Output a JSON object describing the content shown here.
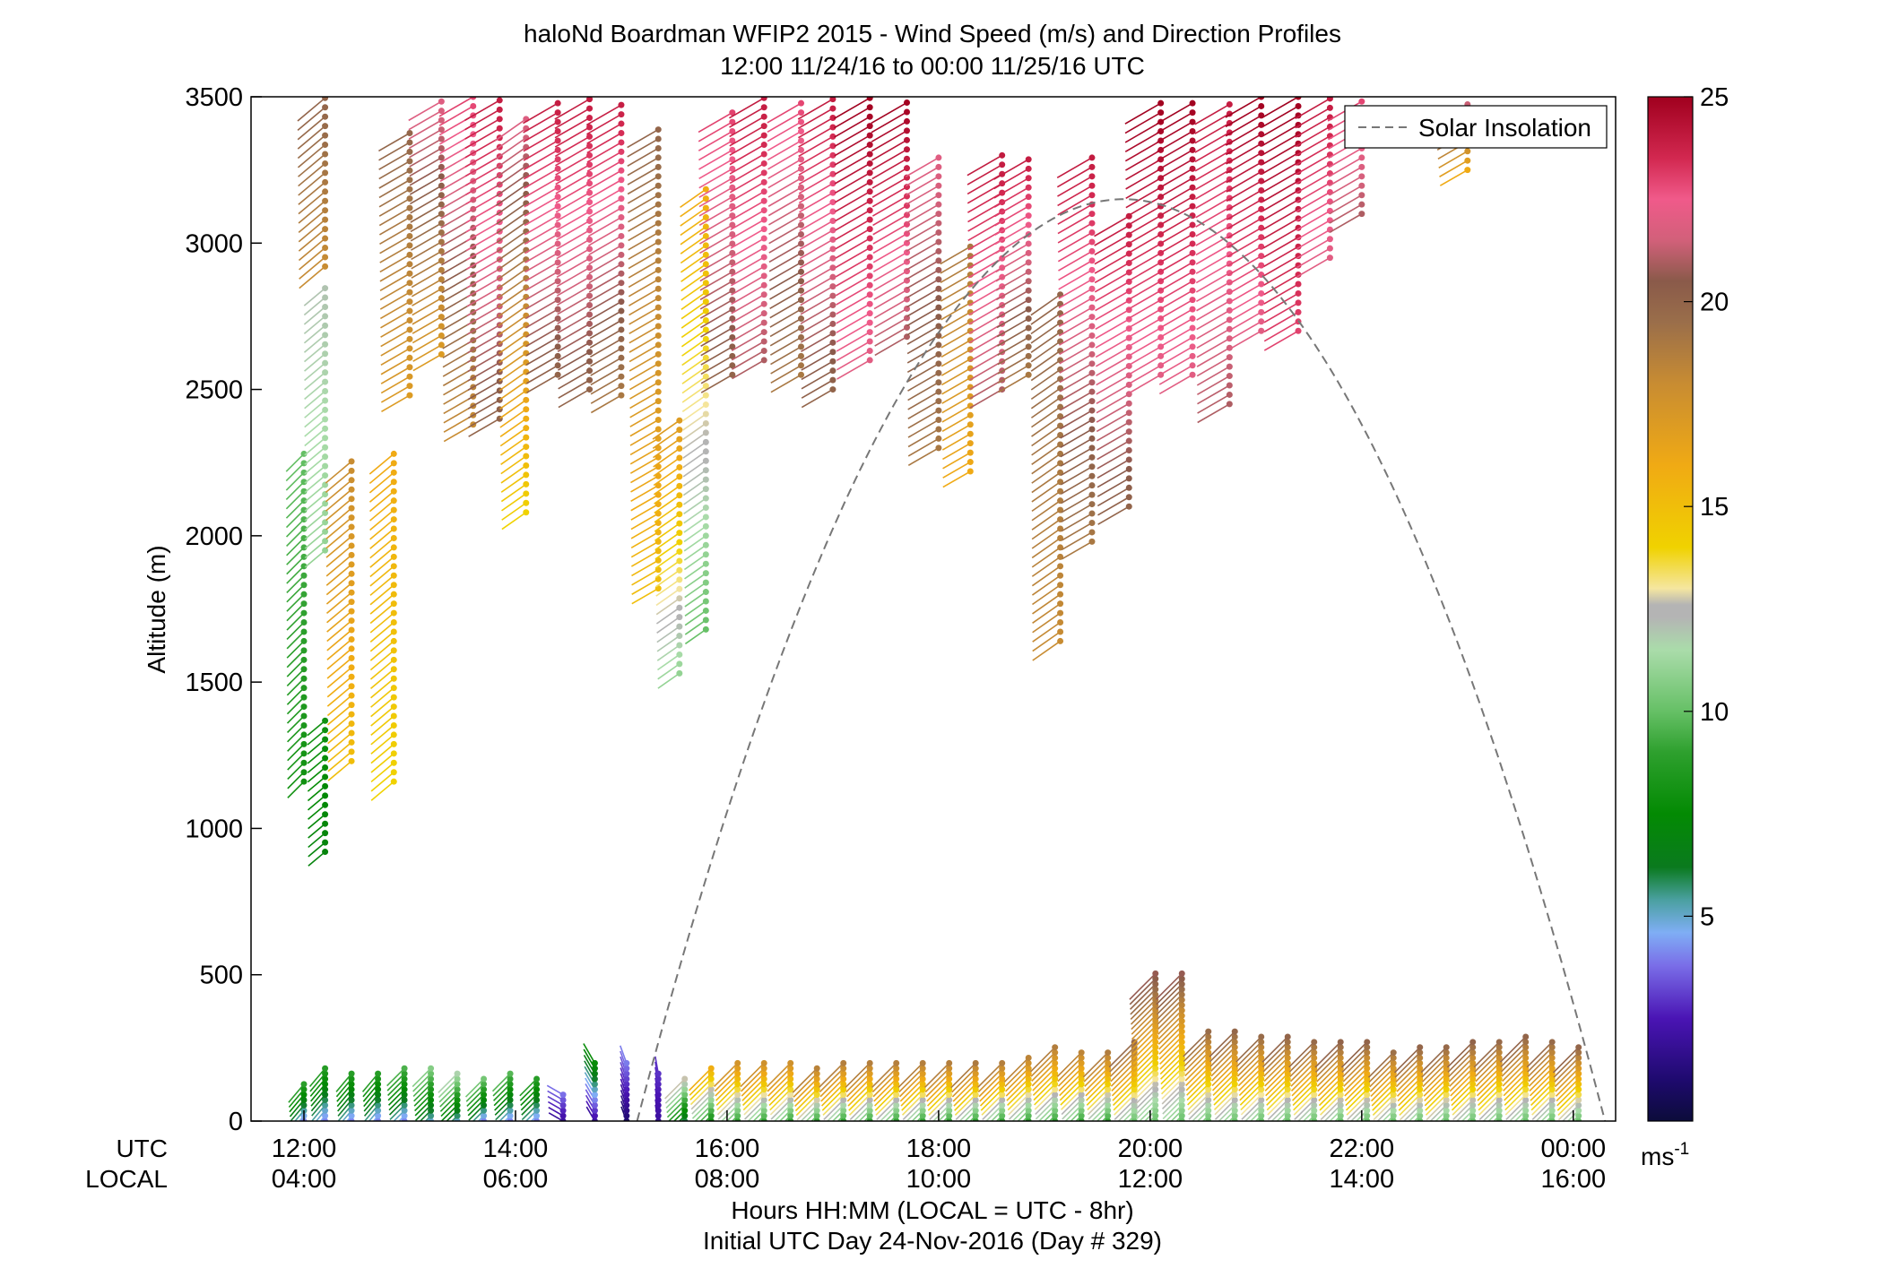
{
  "chart_data": {
    "type": "wind-barb-profile",
    "title": "haloNd Boardman WFIP2 2015 - Wind Speed (m/s) and Direction Profiles",
    "subtitle": "12:00 11/24/16 to 00:00 11/25/16  UTC",
    "ylabel": "Altitude (m)",
    "ylim": [
      0,
      3500
    ],
    "y_ticks": [
      "0",
      "500",
      "1000",
      "1500",
      "2000",
      "2500",
      "3000",
      "3500"
    ],
    "y_tick_values": [
      0,
      500,
      1000,
      1500,
      2000,
      2500,
      3000,
      3500
    ],
    "xlim_hours": [
      11.5,
      24.4
    ],
    "x_tick_hours": [
      12,
      14,
      16,
      18,
      20,
      22,
      24
    ],
    "x_ticks_utc": [
      "12:00",
      "14:00",
      "16:00",
      "18:00",
      "20:00",
      "22:00",
      "00:00"
    ],
    "x_ticks_local": [
      "04:00",
      "06:00",
      "08:00",
      "10:00",
      "12:00",
      "14:00",
      "16:00"
    ],
    "row_label_utc": "UTC",
    "row_label_local": "LOCAL",
    "xlabel": "Hours HH:MM  (LOCAL = UTC - 8hr)",
    "xlabel2": "Initial UTC Day 24-Nov-2016 (Day # 329)",
    "legend": "Solar Insolation",
    "legend_position": "top-right",
    "colorbar": {
      "range": [
        0,
        25
      ],
      "ticks": [
        "5",
        "10",
        "15",
        "20",
        "25"
      ],
      "tick_values": [
        5,
        10,
        15,
        20,
        25
      ],
      "unit": "ms",
      "unit_exp": "-1",
      "stops": [
        [
          0,
          "#0c0c3a"
        ],
        [
          1,
          "#1e0a6e"
        ],
        [
          2.5,
          "#4a14b4"
        ],
        [
          3.8,
          "#7a6ee8"
        ],
        [
          4.6,
          "#7faef5"
        ],
        [
          5.4,
          "#4aa0a0"
        ],
        [
          6.2,
          "#0a7a1e"
        ],
        [
          7.5,
          "#038a03"
        ],
        [
          9,
          "#2ea02e"
        ],
        [
          10,
          "#66c066"
        ],
        [
          11.5,
          "#aadcaa"
        ],
        [
          12.3,
          "#b4b4b4"
        ],
        [
          12.6,
          "#b4b4b4"
        ],
        [
          13,
          "#f5e6a0"
        ],
        [
          14,
          "#f0d200"
        ],
        [
          16,
          "#f0aa14"
        ],
        [
          18,
          "#c88c32"
        ],
        [
          19.5,
          "#9a6e4a"
        ],
        [
          20.5,
          "#8a5a4a"
        ],
        [
          21.5,
          "#d2607a"
        ],
        [
          22.5,
          "#f05a8a"
        ],
        [
          23.5,
          "#d22850"
        ],
        [
          25,
          "#a0001e"
        ]
      ]
    },
    "solar_insolation": {
      "start_hour": 15.15,
      "end_hour": 24.3,
      "peak_hour": 19.75,
      "peak_altitude": 3150,
      "style": "dashed",
      "color": "#777777"
    },
    "profiles": [
      {
        "t": 12.0,
        "base": 1160,
        "top": 2290,
        "s_low": 8,
        "s_high": 10,
        "dir": 225
      },
      {
        "t": 12.2,
        "base": 920,
        "top": 1390,
        "s_low": 7,
        "s_high": 8,
        "dir": 230
      },
      {
        "t": 12.2,
        "base": 1950,
        "top": 2850,
        "s_low": 11,
        "s_high": 12,
        "dir": 230
      },
      {
        "t": 12.2,
        "base": 2920,
        "top": 3500,
        "s_low": 18,
        "s_high": 20,
        "dir": 230
      },
      {
        "t": 12.45,
        "base": 1230,
        "top": 2260,
        "s_low": 15,
        "s_high": 18,
        "dir": 230
      },
      {
        "t": 12.85,
        "base": 1160,
        "top": 2280,
        "s_low": 14,
        "s_high": 16,
        "dir": 230
      },
      {
        "t": 13.0,
        "base": 2480,
        "top": 3400,
        "s_low": 17,
        "s_high": 20,
        "dir": 240
      },
      {
        "t": 13.3,
        "base": 2620,
        "top": 3500,
        "s_low": 17,
        "s_high": 22,
        "dir": 240
      },
      {
        "t": 13.6,
        "base": 2380,
        "top": 3500,
        "s_low": 18,
        "s_high": 23,
        "dir": 240
      },
      {
        "t": 13.85,
        "base": 2400,
        "top": 3500,
        "s_low": 20,
        "s_high": 24,
        "dir": 240
      },
      {
        "t": 14.1,
        "base": 2080,
        "top": 3450,
        "s_low": 14,
        "s_high": 22,
        "dir": 235
      },
      {
        "t": 14.4,
        "base": 2550,
        "top": 3500,
        "s_low": 20,
        "s_high": 24,
        "dir": 240
      },
      {
        "t": 14.7,
        "base": 2500,
        "top": 3500,
        "s_low": 20,
        "s_high": 24,
        "dir": 240
      },
      {
        "t": 15.0,
        "base": 2480,
        "top": 3500,
        "s_low": 19,
        "s_high": 24,
        "dir": 240
      },
      {
        "t": 15.35,
        "base": 1820,
        "top": 3400,
        "s_low": 15,
        "s_high": 20,
        "dir": 240
      },
      {
        "t": 15.55,
        "base": 1530,
        "top": 2400,
        "s_low": 11,
        "s_high": 17,
        "dir": 235
      },
      {
        "t": 15.8,
        "base": 1680,
        "top": 3200,
        "s_low": 10,
        "s_high": 16,
        "dir": 235
      },
      {
        "t": 16.05,
        "base": 2550,
        "top": 3450,
        "s_low": 20,
        "s_high": 23,
        "dir": 240
      },
      {
        "t": 16.35,
        "base": 2600,
        "top": 3500,
        "s_low": 21,
        "s_high": 24,
        "dir": 240
      },
      {
        "t": 16.7,
        "base": 2550,
        "top": 3500,
        "s_low": 19,
        "s_high": 23,
        "dir": 240
      },
      {
        "t": 17.0,
        "base": 2500,
        "top": 3500,
        "s_low": 20,
        "s_high": 24,
        "dir": 240
      },
      {
        "t": 17.35,
        "base": 2600,
        "top": 3500,
        "s_low": 22,
        "s_high": 25,
        "dir": 240
      },
      {
        "t": 17.7,
        "base": 2680,
        "top": 3500,
        "s_low": 21,
        "s_high": 25,
        "dir": 240
      },
      {
        "t": 18.0,
        "base": 2300,
        "top": 3300,
        "s_low": 19,
        "s_high": 22,
        "dir": 240
      },
      {
        "t": 18.3,
        "base": 2220,
        "top": 3000,
        "s_low": 16,
        "s_high": 19,
        "dir": 240
      },
      {
        "t": 18.6,
        "base": 2500,
        "top": 3300,
        "s_low": 21,
        "s_high": 24,
        "dir": 240
      },
      {
        "t": 18.85,
        "base": 2550,
        "top": 3300,
        "s_low": 19,
        "s_high": 24,
        "dir": 240
      },
      {
        "t": 19.15,
        "base": 1640,
        "top": 2850,
        "s_low": 18,
        "s_high": 20,
        "dir": 235
      },
      {
        "t": 19.45,
        "base": 1980,
        "top": 3300,
        "s_low": 19,
        "s_high": 24,
        "dir": 240
      },
      {
        "t": 19.8,
        "base": 2100,
        "top": 3100,
        "s_low": 20,
        "s_high": 24,
        "dir": 240
      },
      {
        "t": 20.1,
        "base": 2550,
        "top": 3500,
        "s_low": 22,
        "s_high": 25,
        "dir": 240
      },
      {
        "t": 20.4,
        "base": 2550,
        "top": 3500,
        "s_low": 22,
        "s_high": 25,
        "dir": 240
      },
      {
        "t": 20.75,
        "base": 2450,
        "top": 3500,
        "s_low": 21,
        "s_high": 24,
        "dir": 240
      },
      {
        "t": 21.05,
        "base": 2700,
        "top": 3500,
        "s_low": 22,
        "s_high": 25,
        "dir": 240
      },
      {
        "t": 21.4,
        "base": 2700,
        "top": 3500,
        "s_low": 23,
        "s_high": 25,
        "dir": 240
      },
      {
        "t": 21.7,
        "base": 2950,
        "top": 3500,
        "s_low": 22,
        "s_high": 24,
        "dir": 240
      },
      {
        "t": 22.0,
        "base": 3100,
        "top": 3500,
        "s_low": 21,
        "s_high": 23,
        "dir": 240
      },
      {
        "t": 23.0,
        "base": 3250,
        "top": 3500,
        "s_low": 16,
        "s_high": 22,
        "dir": 240
      },
      {
        "t": 12.0,
        "base": 0,
        "top": 130,
        "s_low": 4,
        "s_high": 9,
        "dir": 220
      },
      {
        "t": 12.2,
        "base": 0,
        "top": 190,
        "s_low": 4,
        "s_high": 9,
        "dir": 220
      },
      {
        "t": 12.45,
        "base": 0,
        "top": 170,
        "s_low": 4,
        "s_high": 9,
        "dir": 220
      },
      {
        "t": 12.7,
        "base": 0,
        "top": 170,
        "s_low": 4,
        "s_high": 9,
        "dir": 220
      },
      {
        "t": 12.95,
        "base": 0,
        "top": 195,
        "s_low": 4,
        "s_high": 10,
        "dir": 225
      },
      {
        "t": 13.2,
        "base": 0,
        "top": 190,
        "s_low": 5,
        "s_high": 11,
        "dir": 225
      },
      {
        "t": 13.45,
        "base": 0,
        "top": 170,
        "s_low": 5,
        "s_high": 12,
        "dir": 225
      },
      {
        "t": 13.7,
        "base": 0,
        "top": 160,
        "s_low": 4,
        "s_high": 11,
        "dir": 225
      },
      {
        "t": 13.95,
        "base": 0,
        "top": 170,
        "s_low": 4,
        "s_high": 10,
        "dir": 225
      },
      {
        "t": 14.2,
        "base": 0,
        "top": 150,
        "s_low": 4,
        "s_high": 9,
        "dir": 225
      },
      {
        "t": 14.45,
        "base": 0,
        "top": 100,
        "s_low": 2,
        "s_high": 4,
        "dir": 300
      },
      {
        "t": 14.75,
        "base": 0,
        "top": 210,
        "s_low": 2,
        "s_high": 8,
        "dir": 330
      },
      {
        "t": 15.05,
        "base": 0,
        "top": 200,
        "s_low": 1,
        "s_high": 4,
        "dir": 340
      },
      {
        "t": 15.35,
        "base": 0,
        "top": 170,
        "s_low": 2,
        "s_high": 3,
        "dir": 350
      },
      {
        "t": 15.6,
        "base": 0,
        "top": 150,
        "s_low": 6,
        "s_high": 13,
        "dir": 225
      },
      {
        "t": 15.85,
        "base": 0,
        "top": 185,
        "s_low": 8,
        "s_high": 16,
        "dir": 225
      },
      {
        "t": 16.1,
        "base": 0,
        "top": 210,
        "s_low": 9,
        "s_high": 18,
        "dir": 225
      },
      {
        "t": 16.35,
        "base": 0,
        "top": 205,
        "s_low": 9,
        "s_high": 18,
        "dir": 225
      },
      {
        "t": 16.6,
        "base": 0,
        "top": 205,
        "s_low": 9,
        "s_high": 18,
        "dir": 225
      },
      {
        "t": 16.85,
        "base": 0,
        "top": 190,
        "s_low": 9,
        "s_high": 19,
        "dir": 225
      },
      {
        "t": 17.1,
        "base": 0,
        "top": 205,
        "s_low": 9,
        "s_high": 19,
        "dir": 225
      },
      {
        "t": 17.35,
        "base": 0,
        "top": 205,
        "s_low": 9,
        "s_high": 19,
        "dir": 225
      },
      {
        "t": 17.6,
        "base": 0,
        "top": 205,
        "s_low": 9,
        "s_high": 19,
        "dir": 225
      },
      {
        "t": 17.85,
        "base": 0,
        "top": 205,
        "s_low": 9,
        "s_high": 19,
        "dir": 225
      },
      {
        "t": 18.1,
        "base": 0,
        "top": 205,
        "s_low": 9,
        "s_high": 19,
        "dir": 225
      },
      {
        "t": 18.35,
        "base": 0,
        "top": 200,
        "s_low": 9,
        "s_high": 19,
        "dir": 225
      },
      {
        "t": 18.6,
        "base": 0,
        "top": 205,
        "s_low": 9,
        "s_high": 19,
        "dir": 225
      },
      {
        "t": 18.85,
        "base": 0,
        "top": 230,
        "s_low": 9,
        "s_high": 19,
        "dir": 225
      },
      {
        "t": 19.1,
        "base": 0,
        "top": 260,
        "s_low": 9,
        "s_high": 19,
        "dir": 225
      },
      {
        "t": 19.35,
        "base": 0,
        "top": 250,
        "s_low": 9,
        "s_high": 19,
        "dir": 225
      },
      {
        "t": 19.6,
        "base": 0,
        "top": 240,
        "s_low": 9,
        "s_high": 19,
        "dir": 225
      },
      {
        "t": 19.85,
        "base": 0,
        "top": 280,
        "s_low": 10,
        "s_high": 20,
        "dir": 225
      },
      {
        "t": 20.05,
        "base": 0,
        "top": 520,
        "s_low": 10,
        "s_high": 21,
        "dir": 225
      },
      {
        "t": 20.3,
        "base": 0,
        "top": 520,
        "s_low": 10,
        "s_high": 21,
        "dir": 225
      },
      {
        "t": 20.55,
        "base": 0,
        "top": 320,
        "s_low": 10,
        "s_high": 20,
        "dir": 225
      },
      {
        "t": 20.8,
        "base": 0,
        "top": 310,
        "s_low": 10,
        "s_high": 20,
        "dir": 225
      },
      {
        "t": 21.05,
        "base": 0,
        "top": 300,
        "s_low": 10,
        "s_high": 20,
        "dir": 225
      },
      {
        "t": 21.3,
        "base": 0,
        "top": 290,
        "s_low": 10,
        "s_high": 20,
        "dir": 225
      },
      {
        "t": 21.55,
        "base": 0,
        "top": 280,
        "s_low": 10,
        "s_high": 20,
        "dir": 225
      },
      {
        "t": 21.8,
        "base": 0,
        "top": 270,
        "s_low": 10,
        "s_high": 20,
        "dir": 225
      },
      {
        "t": 22.05,
        "base": 0,
        "top": 270,
        "s_low": 10,
        "s_high": 20,
        "dir": 225
      },
      {
        "t": 22.3,
        "base": 0,
        "top": 250,
        "s_low": 10,
        "s_high": 20,
        "dir": 225
      },
      {
        "t": 22.55,
        "base": 0,
        "top": 255,
        "s_low": 10,
        "s_high": 20,
        "dir": 225
      },
      {
        "t": 22.8,
        "base": 0,
        "top": 260,
        "s_low": 10,
        "s_high": 20,
        "dir": 225
      },
      {
        "t": 23.05,
        "base": 0,
        "top": 270,
        "s_low": 10,
        "s_high": 20,
        "dir": 225
      },
      {
        "t": 23.3,
        "base": 0,
        "top": 280,
        "s_low": 10,
        "s_high": 20,
        "dir": 225
      },
      {
        "t": 23.55,
        "base": 0,
        "top": 290,
        "s_low": 10,
        "s_high": 20,
        "dir": 225
      },
      {
        "t": 23.8,
        "base": 0,
        "top": 280,
        "s_low": 10,
        "s_high": 20,
        "dir": 225
      },
      {
        "t": 24.05,
        "base": 0,
        "top": 255,
        "s_low": 10,
        "s_high": 20,
        "dir": 225
      }
    ]
  }
}
